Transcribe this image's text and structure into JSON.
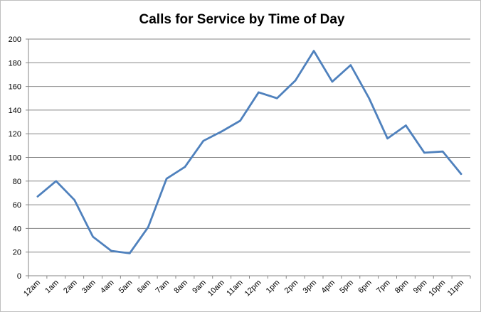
{
  "chart_data": {
    "type": "line",
    "title": "Calls for Service by Time of Day",
    "xlabel": "",
    "ylabel": "",
    "categories": [
      "12am",
      "1am",
      "2am",
      "3am",
      "4am",
      "5am",
      "6am",
      "7am",
      "8am",
      "9am",
      "10am",
      "11am",
      "12pm",
      "1pm",
      "2pm",
      "3pm",
      "4pm",
      "5pm",
      "6pm",
      "7pm",
      "8pm",
      "9pm",
      "10pm",
      "11pm"
    ],
    "series": [
      {
        "values": [
          67,
          80,
          64,
          33,
          21,
          19,
          41,
          82,
          92,
          114,
          122,
          131,
          155,
          150,
          165,
          190,
          164,
          178,
          150,
          116,
          127,
          104,
          105,
          86
        ]
      }
    ],
    "ylim": [
      0,
      200
    ],
    "yticks": [
      0,
      20,
      40,
      60,
      80,
      100,
      120,
      140,
      160,
      180,
      200
    ],
    "grid": "horizontal",
    "legend": "none",
    "colors": {
      "line": "#4f81bd",
      "grid": "#868686",
      "axis": "#868686"
    }
  }
}
